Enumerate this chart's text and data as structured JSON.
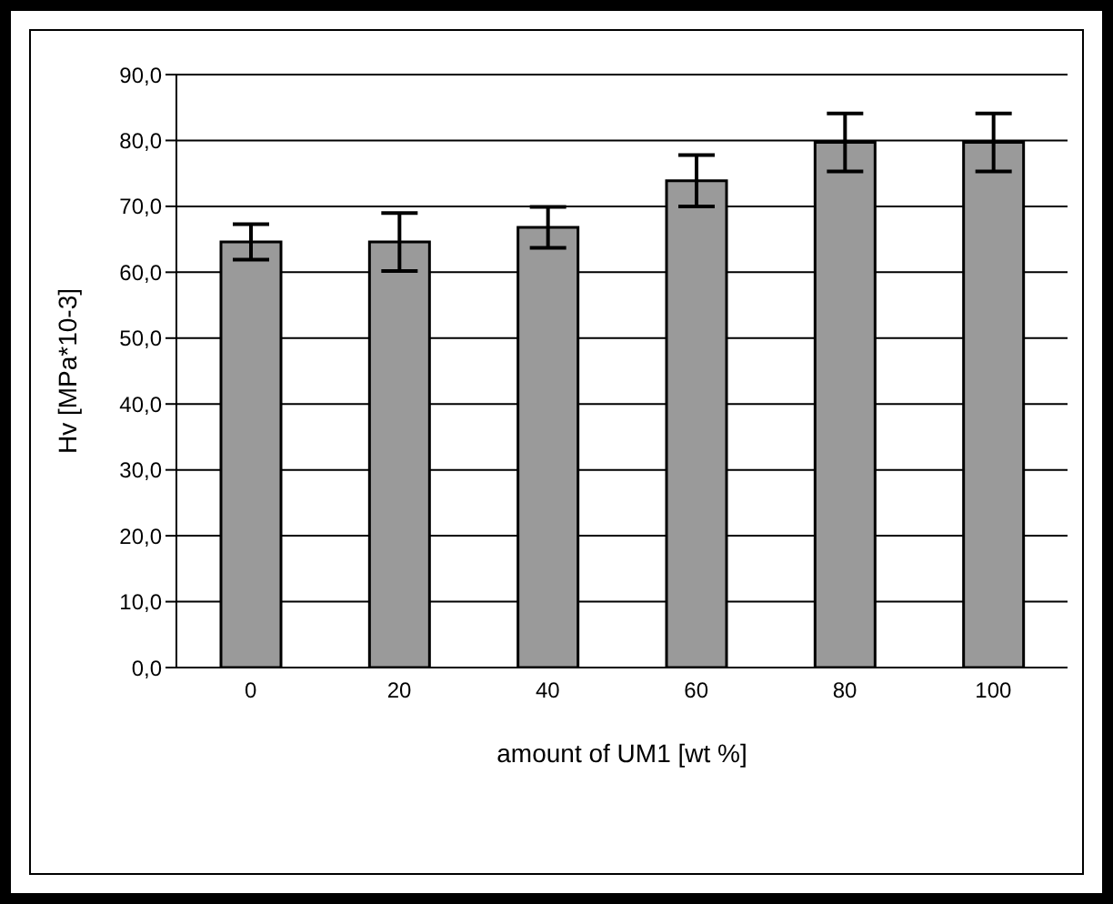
{
  "chart_data": {
    "type": "bar",
    "xlabel": "amount of  UM1 [wt %]",
    "ylabel": "Hv [MPa*10-3]",
    "categories": [
      "0",
      "20",
      "40",
      "60",
      "80",
      "100"
    ],
    "values": [
      64.6,
      64.6,
      66.8,
      73.9,
      79.7,
      79.7
    ],
    "errors": [
      2.7,
      4.4,
      3.1,
      3.9,
      4.4,
      4.4
    ],
    "color": "#9a9a9a",
    "ylim": [
      0,
      90
    ],
    "yticks": [
      {
        "value": 0,
        "label": "0,0"
      },
      {
        "value": 10,
        "label": "10,0"
      },
      {
        "value": 20,
        "label": "20,0"
      },
      {
        "value": 30,
        "label": "30,0"
      },
      {
        "value": 40,
        "label": "40,0"
      },
      {
        "value": 50,
        "label": "50,0"
      },
      {
        "value": 60,
        "label": "60,0"
      },
      {
        "value": 70,
        "label": "70,0"
      },
      {
        "value": 80,
        "label": "80,0"
      },
      {
        "value": 90,
        "label": "90,0"
      }
    ],
    "grid": "y",
    "legend": false
  }
}
